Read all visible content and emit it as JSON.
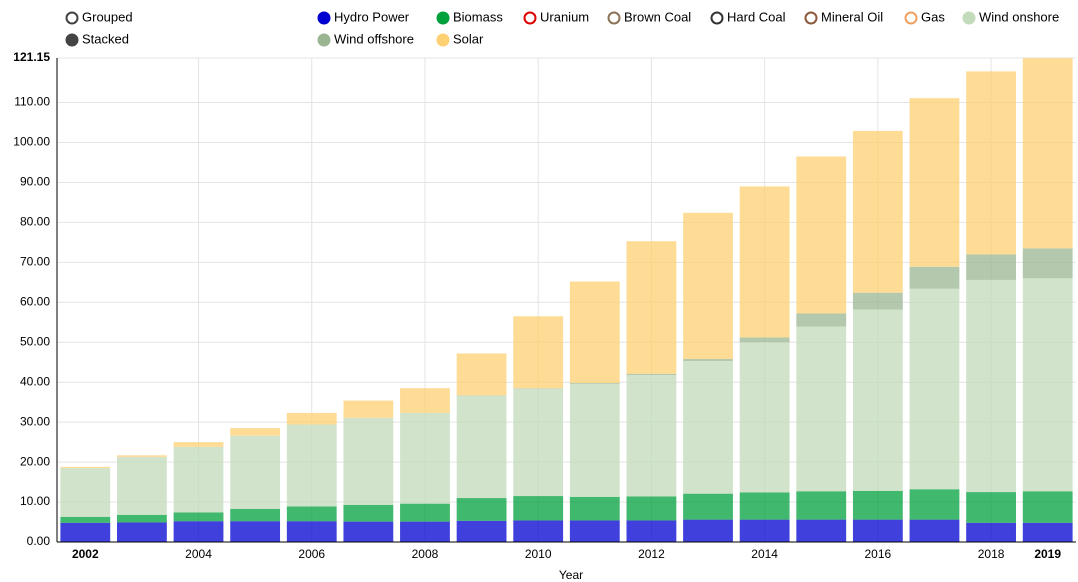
{
  "chart_data": {
    "type": "bar",
    "stacked": true,
    "modes": [
      "Grouped",
      "Stacked"
    ],
    "selected_mode": "Stacked",
    "x_label": "Year",
    "categories": [
      "2002",
      null,
      "2004",
      null,
      "2006",
      null,
      "2008",
      null,
      "2010",
      null,
      "2012",
      null,
      "2014",
      null,
      "2016",
      null,
      "2018",
      "2019"
    ],
    "ylim": [
      0,
      121.15
    ],
    "yticks": [
      {
        "value": 0,
        "label": "0.00"
      },
      {
        "value": 10,
        "label": "10.00"
      },
      {
        "value": 20,
        "label": "20.00"
      },
      {
        "value": 30,
        "label": "30.00"
      },
      {
        "value": 40,
        "label": "40.00"
      },
      {
        "value": 50,
        "label": "50.00"
      },
      {
        "value": 60,
        "label": "60.00"
      },
      {
        "value": 70,
        "label": "70.00"
      },
      {
        "value": 80,
        "label": "80.00"
      },
      {
        "value": 90,
        "label": "90.00"
      },
      {
        "value": 100,
        "label": "100.00"
      },
      {
        "value": 110,
        "label": "110.00"
      },
      {
        "value": 121.15,
        "label": "121.15"
      }
    ],
    "grid": true,
    "series": [
      {
        "name": "Hydro Power",
        "color": "#0000d0",
        "visible": true,
        "values": [
          4.8,
          4.9,
          5.2,
          5.2,
          5.2,
          5.1,
          5.1,
          5.3,
          5.4,
          5.4,
          5.4,
          5.6,
          5.6,
          5.6,
          5.6,
          5.6,
          4.8,
          4.8
        ]
      },
      {
        "name": "Biomass",
        "color": "#00a03c",
        "visible": true,
        "values": [
          1.5,
          1.9,
          2.2,
          3.1,
          3.7,
          4.2,
          4.5,
          5.7,
          6.1,
          5.9,
          6.0,
          6.5,
          6.8,
          7.1,
          7.2,
          7.6,
          7.7,
          7.9
        ]
      },
      {
        "name": "Uranium",
        "color": "#e00000",
        "visible": false,
        "values": [
          null,
          null,
          null,
          null,
          null,
          null,
          null,
          null,
          null,
          null,
          null,
          null,
          null,
          null,
          null,
          null,
          null,
          null
        ]
      },
      {
        "name": "Brown Coal",
        "color": "#8b7355",
        "visible": false,
        "values": [
          null,
          null,
          null,
          null,
          null,
          null,
          null,
          null,
          null,
          null,
          null,
          null,
          null,
          null,
          null,
          null,
          null,
          null
        ]
      },
      {
        "name": "Hard Coal",
        "color": "#333333",
        "visible": false,
        "values": [
          null,
          null,
          null,
          null,
          null,
          null,
          null,
          null,
          null,
          null,
          null,
          null,
          null,
          null,
          null,
          null,
          null,
          null
        ]
      },
      {
        "name": "Mineral Oil",
        "color": "#8b5a3c",
        "visible": false,
        "values": [
          null,
          null,
          null,
          null,
          null,
          null,
          null,
          null,
          null,
          null,
          null,
          null,
          null,
          null,
          null,
          null,
          null,
          null
        ]
      },
      {
        "name": "Gas",
        "color": "#f0a060",
        "visible": false,
        "values": [
          null,
          null,
          null,
          null,
          null,
          null,
          null,
          null,
          null,
          null,
          null,
          null,
          null,
          null,
          null,
          null,
          null,
          null
        ]
      },
      {
        "name": "Wind onshore",
        "color": "#c2dbba",
        "visible": true,
        "values": [
          12.2,
          14.5,
          16.4,
          18.3,
          20.5,
          21.8,
          22.7,
          25.6,
          26.9,
          28.3,
          30.4,
          33.2,
          37.6,
          41.2,
          45.4,
          50.2,
          53.1,
          53.3
        ]
      },
      {
        "name": "Wind offshore",
        "color": "#9bb592",
        "visible": true,
        "values": [
          0,
          0,
          0,
          0,
          0,
          0,
          0,
          0.1,
          0.1,
          0.2,
          0.3,
          0.5,
          1.2,
          3.3,
          4.2,
          5.5,
          6.4,
          7.5
        ]
      },
      {
        "name": "Solar",
        "color": "#fdd072",
        "visible": true,
        "values": [
          0.3,
          0.4,
          1.2,
          1.9,
          2.9,
          4.3,
          6.2,
          10.5,
          18.0,
          25.4,
          33.2,
          36.6,
          37.8,
          39.3,
          40.5,
          42.2,
          45.8,
          47.6
        ]
      }
    ]
  }
}
